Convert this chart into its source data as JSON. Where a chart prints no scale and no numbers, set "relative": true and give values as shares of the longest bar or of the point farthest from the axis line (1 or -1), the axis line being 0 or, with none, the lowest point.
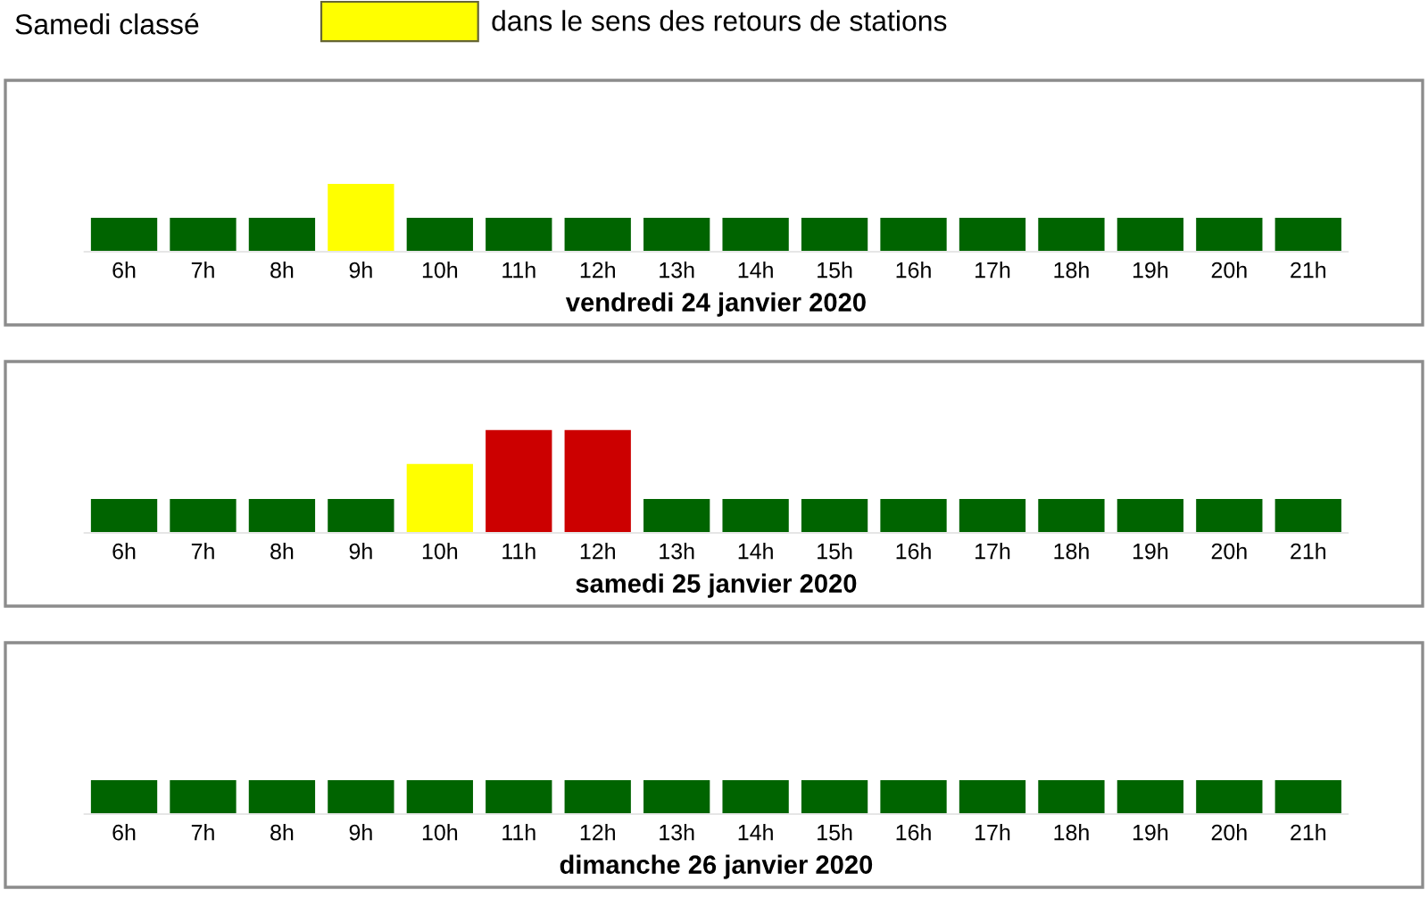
{
  "chart_data": [
    {
      "type": "bar",
      "relative": true,
      "title": "Samedi classé",
      "xlabel": "vendredi 24 janvier 2020",
      "legend": "top",
      "categories": [
        "6h",
        "7h",
        "8h",
        "9h",
        "10h",
        "11h",
        "12h",
        "13h",
        "14h",
        "15h",
        "16h",
        "17h",
        "18h",
        "19h",
        "20h",
        "21h"
      ],
      "series": [
        {
          "color": "#006400",
          "values": [
            0.5,
            0.5,
            0.5,
            null,
            0.5,
            0.5,
            0.5,
            0.5,
            0.5,
            0.5,
            0.5,
            0.5,
            0.5,
            0.5,
            0.5,
            0.5
          ]
        },
        {
          "name": "dans le sens des retours de stations",
          "color": "#ffff00",
          "values": [
            null,
            null,
            null,
            1,
            null,
            null,
            null,
            null,
            null,
            null,
            null,
            null,
            null,
            null,
            null,
            null
          ]
        }
      ]
    },
    {
      "type": "bar",
      "relative": true,
      "xlabel": "samedi 25 janvier 2020",
      "categories": [
        "6h",
        "7h",
        "8h",
        "9h",
        "10h",
        "11h",
        "12h",
        "13h",
        "14h",
        "15h",
        "16h",
        "17h",
        "18h",
        "19h",
        "20h",
        "21h"
      ],
      "series": [
        {
          "color": "#006400",
          "values": [
            0.33,
            0.33,
            0.33,
            0.33,
            null,
            null,
            null,
            0.33,
            0.33,
            0.33,
            0.33,
            0.33,
            0.33,
            0.33,
            0.33,
            0.33
          ]
        },
        {
          "color": "#ffff00",
          "values": [
            null,
            null,
            null,
            null,
            0.67,
            null,
            null,
            null,
            null,
            null,
            null,
            null,
            null,
            null,
            null,
            null
          ]
        },
        {
          "color": "#cc0000",
          "values": [
            null,
            null,
            null,
            null,
            null,
            1,
            1,
            null,
            null,
            null,
            null,
            null,
            null,
            null,
            null,
            null
          ]
        }
      ]
    },
    {
      "type": "bar",
      "relative": true,
      "xlabel": "dimanche 26 janvier 2020",
      "categories": [
        "6h",
        "7h",
        "8h",
        "9h",
        "10h",
        "11h",
        "12h",
        "13h",
        "14h",
        "15h",
        "16h",
        "17h",
        "18h",
        "19h",
        "20h",
        "21h"
      ],
      "series": [
        {
          "color": "#006400",
          "values": [
            1,
            1,
            1,
            1,
            1,
            1,
            1,
            1,
            1,
            1,
            1,
            1,
            1,
            1,
            1,
            1
          ]
        }
      ]
    }
  ]
}
